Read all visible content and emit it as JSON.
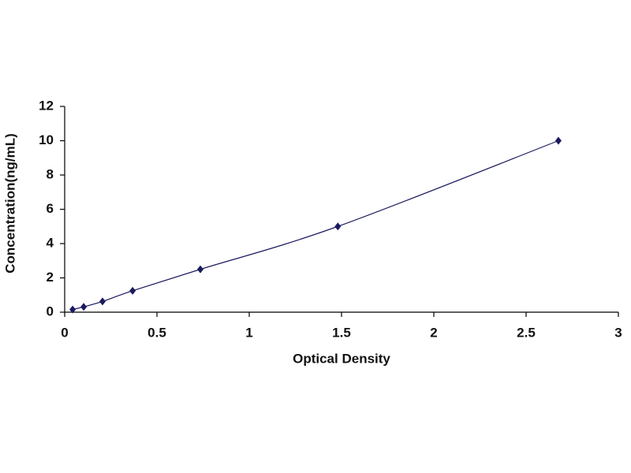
{
  "chart_data": {
    "type": "scatter",
    "x_label": "Optical Density",
    "y_label": "Concentration(ng/mL)",
    "series": [
      {
        "color": "#1a1a5e",
        "x": [
          0.043,
          0.103,
          0.205,
          0.368,
          0.735,
          1.48,
          2.675
        ],
        "values": [
          0.156,
          0.312,
          0.625,
          1.25,
          2.5,
          5,
          10
        ]
      }
    ],
    "xlim": [
      0,
      3
    ],
    "xticks": [
      0,
      0.5,
      1,
      1.5,
      2,
      2.5,
      3
    ],
    "ylim": [
      0,
      12
    ],
    "yticks": [
      0,
      2,
      4,
      6,
      8,
      10,
      12
    ],
    "grid": false
  }
}
